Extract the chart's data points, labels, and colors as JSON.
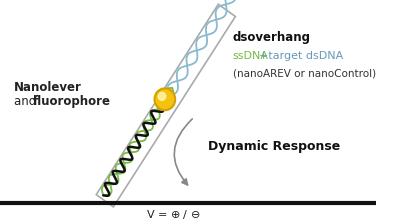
{
  "bg_color": "#ffffff",
  "text_color": "#222222",
  "green_color": "#77bb44",
  "blue_color": "#6699bb",
  "ssdna_color": "#111111",
  "green_dna_color": "#77bb44",
  "blue_dna_color": "#88bbcc",
  "arrow_color": "#888888",
  "lever_color": "#aaaaaa",
  "surface_color": "#111111",
  "nanolever_label_line1": "Nanolever",
  "nanolever_label_line2": "and ",
  "fluorophore_label": "fluorophore",
  "dsoverhang_label": "dsoverhang",
  "ssdna_label": "ssDNA",
  "plus_label": "+target dsDNA",
  "nano_label": "(nanoAREV or nanoControl)",
  "dynamic_label": "Dynamic Response",
  "voltage_label": "V = "
}
